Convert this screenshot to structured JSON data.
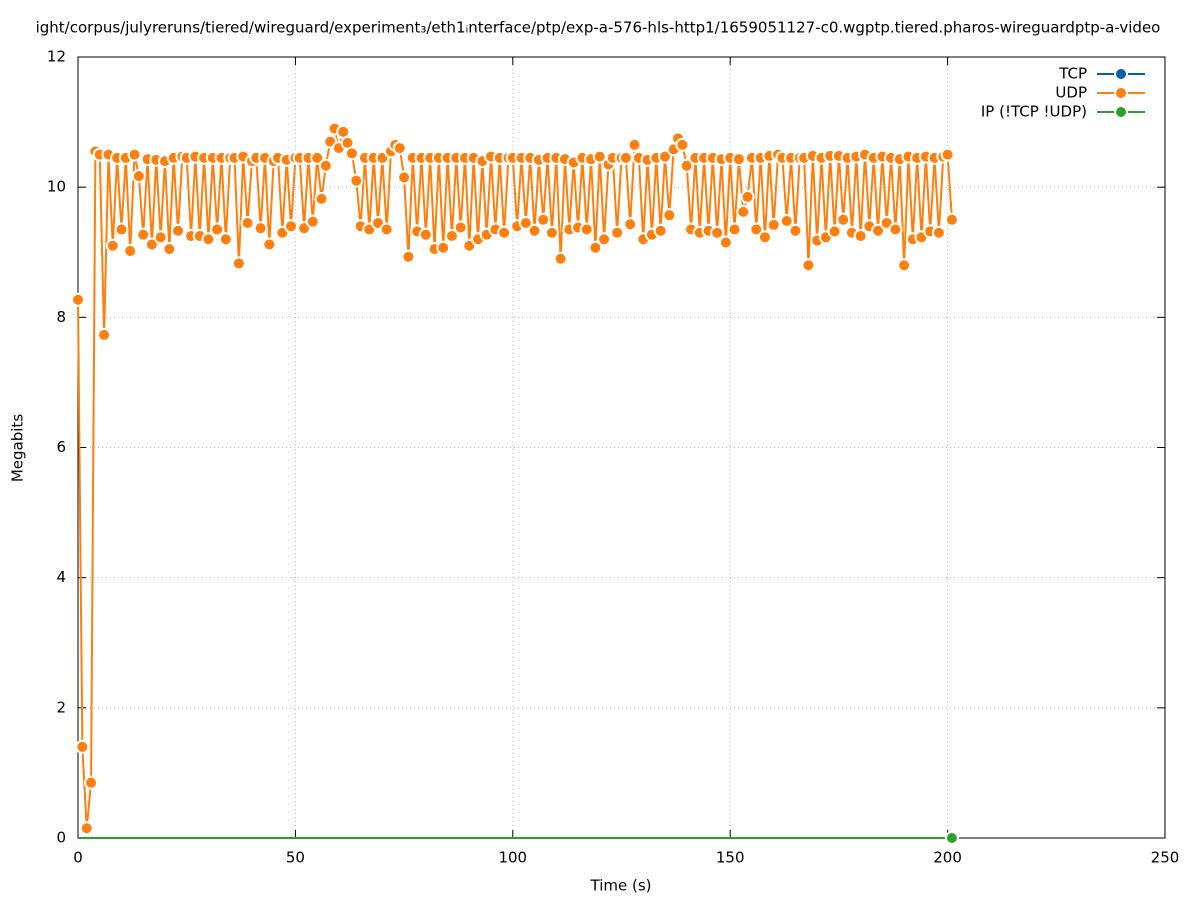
{
  "chart_data": {
    "type": "line",
    "title": "ight/corpus/julyreruns/tiered/wireguard/experiment₃/eth1ᵢnterface/ptp/exp-a-576-hls-http1/1659051127-c0.wgptp.tiered.pharos-wireguardptp-a-video",
    "xlabel": "Time (s)",
    "ylabel": "Megabits",
    "xlim": [
      0,
      250
    ],
    "xticks": [
      0,
      50,
      100,
      150,
      200,
      250
    ],
    "ylim": [
      0,
      12
    ],
    "yticks": [
      0,
      2,
      4,
      6,
      8,
      10,
      12
    ],
    "grid": true,
    "legend": "top right",
    "x": [
      0,
      1,
      2,
      3,
      4,
      5,
      6,
      7,
      8,
      9,
      10,
      11,
      12,
      13,
      14,
      15,
      16,
      17,
      18,
      19,
      20,
      21,
      22,
      23,
      24,
      25,
      26,
      27,
      28,
      29,
      30,
      31,
      32,
      33,
      34,
      35,
      36,
      37,
      38,
      39,
      40,
      41,
      42,
      43,
      44,
      45,
      46,
      47,
      48,
      49,
      50,
      51,
      52,
      53,
      54,
      55,
      56,
      57,
      58,
      59,
      60,
      61,
      62,
      63,
      64,
      65,
      66,
      67,
      68,
      69,
      70,
      71,
      72,
      73,
      74,
      75,
      76,
      77,
      78,
      79,
      80,
      81,
      82,
      83,
      84,
      85,
      86,
      87,
      88,
      89,
      90,
      91,
      92,
      93,
      94,
      95,
      96,
      97,
      98,
      99,
      100,
      101,
      102,
      103,
      104,
      105,
      106,
      107,
      108,
      109,
      110,
      111,
      112,
      113,
      114,
      115,
      116,
      117,
      118,
      119,
      120,
      121,
      122,
      123,
      124,
      125,
      126,
      127,
      128,
      129,
      130,
      131,
      132,
      133,
      134,
      135,
      136,
      137,
      138,
      139,
      140,
      141,
      142,
      143,
      144,
      145,
      146,
      147,
      148,
      149,
      150,
      151,
      152,
      153,
      154,
      155,
      156,
      157,
      158,
      159,
      160,
      161,
      162,
      163,
      164,
      165,
      166,
      167,
      168,
      169,
      170,
      171,
      172,
      173,
      174,
      175,
      176,
      177,
      178,
      179,
      180,
      181,
      182,
      183,
      184,
      185,
      186,
      187,
      188,
      189,
      190,
      191,
      192,
      193,
      194,
      195,
      196,
      197,
      198,
      199,
      200,
      201
    ],
    "series": [
      {
        "name": "TCP",
        "color": "#0060ad",
        "values": [
          null,
          null,
          null,
          null,
          null,
          null,
          null,
          null,
          null,
          null,
          null,
          null,
          null,
          null,
          null,
          null,
          null,
          null,
          null,
          null,
          null,
          null,
          null,
          null,
          null,
          null,
          null,
          null,
          null,
          null,
          null,
          null,
          null,
          null,
          null,
          null,
          null,
          null,
          null,
          null,
          null,
          null,
          null,
          null,
          null,
          null,
          null,
          null,
          null,
          null,
          null,
          null,
          null,
          null,
          null,
          null,
          null,
          null,
          null,
          null,
          null,
          null,
          null,
          null,
          null,
          null,
          null,
          null,
          null,
          null,
          null,
          null,
          null,
          null,
          null,
          null,
          null,
          null,
          null,
          null,
          null,
          null,
          null,
          null,
          null,
          null,
          null,
          null,
          null,
          null,
          null,
          null,
          null,
          null,
          null,
          null,
          null,
          null,
          null,
          null,
          null,
          null,
          null,
          null,
          null,
          null,
          null,
          null,
          null,
          null,
          null,
          null,
          null,
          null,
          null,
          null,
          null,
          null,
          null,
          null,
          null,
          null,
          null,
          null,
          null,
          null,
          null,
          null,
          null,
          null,
          null,
          null,
          null,
          null,
          null,
          null,
          null,
          null,
          null,
          null,
          null,
          null,
          null,
          null,
          null,
          null,
          null,
          null,
          null,
          null,
          null,
          null,
          null,
          null,
          null,
          null,
          null,
          null,
          null,
          null,
          null,
          null,
          null,
          null,
          null,
          null,
          null,
          null,
          null,
          null,
          null,
          null,
          null,
          null,
          null,
          null,
          null,
          null,
          null,
          null,
          null,
          null,
          null,
          null,
          null,
          null,
          null,
          null,
          null,
          null,
          null,
          null,
          null,
          null,
          null,
          null,
          null,
          null,
          null,
          null,
          null,
          null
        ]
      },
      {
        "name": "UDP",
        "color": "#ff7f0e",
        "values": [
          8.27,
          1.4,
          0.15,
          0.85,
          10.55,
          10.5,
          7.73,
          10.5,
          9.1,
          10.45,
          9.35,
          10.45,
          9.02,
          10.5,
          10.17,
          9.27,
          10.43,
          9.12,
          10.42,
          9.23,
          10.4,
          9.05,
          10.45,
          9.33,
          10.47,
          10.45,
          9.25,
          10.47,
          9.25,
          10.45,
          9.2,
          10.45,
          9.35,
          10.45,
          9.2,
          10.45,
          10.45,
          8.83,
          10.47,
          9.45,
          10.4,
          10.45,
          9.37,
          10.45,
          9.12,
          10.4,
          10.45,
          9.3,
          10.42,
          9.4,
          10.45,
          10.45,
          9.37,
          10.45,
          9.47,
          10.45,
          9.82,
          10.33,
          10.7,
          10.9,
          10.6,
          10.85,
          10.68,
          10.52,
          10.1,
          9.4,
          10.45,
          9.35,
          10.45,
          9.45,
          10.45,
          9.35,
          10.55,
          10.65,
          10.6,
          10.15,
          8.93,
          10.45,
          9.32,
          10.45,
          9.27,
          10.45,
          9.05,
          10.45,
          9.07,
          10.45,
          9.25,
          10.45,
          9.38,
          10.45,
          9.1,
          10.45,
          9.2,
          10.4,
          9.27,
          10.47,
          9.35,
          10.45,
          9.3,
          10.45,
          10.45,
          9.4,
          10.45,
          9.45,
          10.45,
          9.33,
          10.42,
          9.5,
          10.45,
          9.3,
          10.45,
          8.9,
          10.43,
          9.35,
          10.38,
          9.38,
          10.45,
          9.35,
          10.43,
          9.07,
          10.47,
          9.2,
          10.35,
          10.45,
          9.3,
          10.45,
          10.45,
          9.43,
          10.65,
          10.45,
          9.2,
          10.42,
          9.27,
          10.45,
          9.33,
          10.47,
          9.57,
          10.58,
          10.75,
          10.65,
          10.33,
          9.35,
          10.45,
          9.3,
          10.45,
          9.33,
          10.45,
          9.3,
          10.43,
          9.15,
          10.45,
          9.35,
          10.43,
          9.62,
          9.85,
          10.45,
          9.35,
          10.45,
          9.23,
          10.48,
          9.42,
          10.5,
          10.45,
          9.48,
          10.45,
          9.33,
          10.45,
          10.45,
          8.8,
          10.48,
          9.18,
          10.45,
          9.23,
          10.48,
          9.32,
          10.48,
          9.5,
          10.45,
          9.3,
          10.47,
          9.25,
          10.5,
          9.4,
          10.45,
          9.33,
          10.47,
          9.45,
          10.45,
          9.35,
          10.43,
          8.8,
          10.47,
          9.2,
          10.45,
          9.23,
          10.47,
          9.32,
          10.45,
          9.3,
          10.47,
          10.5,
          9.5
        ]
      },
      {
        "name": "IP (!TCP  !UDP)",
        "color": "#2ca02c",
        "values": [
          0,
          0,
          0,
          0,
          0,
          0,
          0,
          0,
          0,
          0,
          0,
          0,
          0,
          0,
          0,
          0,
          0,
          0,
          0,
          0,
          0,
          0,
          0,
          0,
          0,
          0,
          0,
          0,
          0,
          0,
          0,
          0,
          0,
          0,
          0,
          0,
          0,
          0,
          0,
          0,
          0,
          0,
          0,
          0,
          0,
          0,
          0,
          0,
          0,
          0,
          0,
          0,
          0,
          0,
          0,
          0,
          0,
          0,
          0,
          0,
          0,
          0,
          0,
          0,
          0,
          0,
          0,
          0,
          0,
          0,
          0,
          0,
          0,
          0,
          0,
          0,
          0,
          0,
          0,
          0,
          0,
          0,
          0,
          0,
          0,
          0,
          0,
          0,
          0,
          0,
          0,
          0,
          0,
          0,
          0,
          0,
          0,
          0,
          0,
          0,
          0,
          0,
          0,
          0,
          0,
          0,
          0,
          0,
          0,
          0,
          0,
          0,
          0,
          0,
          0,
          0,
          0,
          0,
          0,
          0,
          0,
          0,
          0,
          0,
          0,
          0,
          0,
          0,
          0,
          0,
          0,
          0,
          0,
          0,
          0,
          0,
          0,
          0,
          0,
          0,
          0,
          0,
          0,
          0,
          0,
          0,
          0,
          0,
          0,
          0,
          0,
          0,
          0,
          0,
          0,
          0,
          0,
          0,
          0,
          0,
          0,
          0,
          0,
          0,
          0,
          0,
          0,
          0,
          0,
          0,
          0,
          0,
          0,
          0,
          0,
          0,
          0,
          0,
          0,
          0,
          0,
          0,
          0,
          0,
          0,
          0,
          0,
          0,
          0,
          0,
          0,
          0,
          0,
          0,
          0,
          0,
          0,
          0,
          0,
          0,
          0,
          0
        ]
      }
    ]
  }
}
